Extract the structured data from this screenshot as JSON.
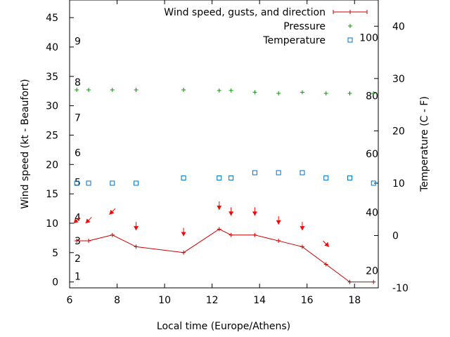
{
  "chart_data": {
    "type": "line",
    "xlabel": "Local time (Europe/Athens)",
    "ylabel_left": "Wind speed (kt - Beaufort)",
    "ylabel_right": "Temperature (C - F)",
    "xlim": [
      6,
      19
    ],
    "ylim_left": [
      -1,
      48
    ],
    "ylim_right": [
      -10,
      45
    ],
    "x_ticks": [
      6,
      8,
      10,
      12,
      14,
      16,
      18
    ],
    "y_left_ticks": [
      0,
      5,
      10,
      15,
      20,
      25,
      30,
      35,
      40,
      45
    ],
    "y_right_ticks": [
      -10,
      0,
      10,
      20,
      30,
      40
    ],
    "beaufort_labels": [
      {
        "label": "1",
        "kt": 1
      },
      {
        "label": "2",
        "kt": 4
      },
      {
        "label": "3",
        "kt": 7
      },
      {
        "label": "4",
        "kt": 11
      },
      {
        "label": "5",
        "kt": 17
      },
      {
        "label": "6",
        "kt": 22
      },
      {
        "label": "7",
        "kt": 28
      },
      {
        "label": "8",
        "kt": 34
      },
      {
        "label": "9",
        "kt": 41
      }
    ],
    "fahrenheit_labels": [
      {
        "label": "20",
        "celsius": -6.7
      },
      {
        "label": "40",
        "celsius": 4.4
      },
      {
        "label": "60",
        "celsius": 15.6
      },
      {
        "label": "80",
        "celsius": 26.7
      },
      {
        "label": "100",
        "celsius": 37.8
      }
    ],
    "legend": [
      "Wind speed, gusts, and direction",
      "Pressure",
      "Temperature"
    ],
    "legend_position": "top-right",
    "colors": {
      "wind": "#cc0000",
      "pressure": "#00a000",
      "temperature": "#0070c8",
      "arrow": "#ff0000"
    },
    "series": [
      {
        "name": "Wind speed, gusts, and direction",
        "x": [
          6.3,
          6.8,
          7.8,
          8.8,
          10.8,
          12.3,
          12.8,
          13.8,
          14.8,
          15.8,
          16.8,
          17.8,
          18.8
        ],
        "values": [
          7,
          7,
          8,
          6,
          5,
          9,
          8,
          8,
          7,
          6,
          3,
          0,
          0
        ]
      },
      {
        "name": "Pressure",
        "x": [
          6.3,
          6.8,
          7.8,
          8.8,
          10.8,
          12.3,
          12.8,
          13.8,
          14.8,
          15.8,
          16.8,
          17.8,
          18.8
        ],
        "values": [
          32.7,
          32.7,
          32.7,
          32.7,
          32.7,
          32.6,
          32.6,
          32.3,
          32.1,
          32.3,
          32.1,
          32.1,
          32.1
        ]
      },
      {
        "name": "Temperature",
        "x": [
          6.3,
          6.8,
          7.8,
          8.8,
          10.8,
          12.3,
          12.8,
          13.8,
          14.8,
          15.8,
          16.8,
          17.8,
          18.8
        ],
        "values_celsius": [
          10,
          10,
          10,
          10,
          11,
          11,
          11,
          12,
          12,
          12,
          11,
          11,
          10
        ]
      }
    ],
    "wind_direction": {
      "x": [
        6.3,
        6.8,
        7.8,
        8.8,
        10.8,
        12.3,
        12.8,
        13.8,
        14.8,
        15.8,
        16.8
      ],
      "y": [
        10.5,
        10.5,
        12,
        9.5,
        8.5,
        13,
        12,
        12,
        10.5,
        9.5,
        6.5
      ],
      "blowing_toward": [
        "SW",
        "SW",
        "SW",
        "S",
        "S",
        "S",
        "S",
        "S",
        "S",
        "S",
        "SE"
      ]
    }
  }
}
